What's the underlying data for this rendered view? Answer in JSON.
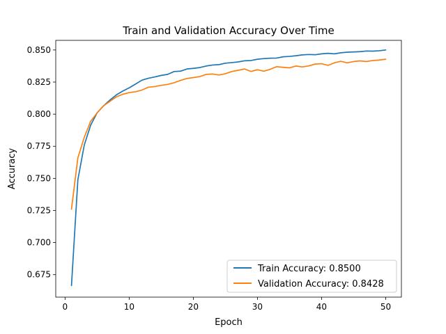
{
  "chart_data": {
    "type": "line",
    "title": "Train and Validation Accuracy Over Time",
    "xlabel": "Epoch",
    "ylabel": "Accuracy",
    "xlim": [
      -1.45,
      52.45
    ],
    "ylim": [
      0.6575,
      0.8575
    ],
    "xticks": [
      0,
      10,
      20,
      30,
      40,
      50
    ],
    "yticks": [
      0.675,
      0.7,
      0.725,
      0.75,
      0.775,
      0.8,
      0.825,
      0.85
    ],
    "ytick_labels": [
      "0.675",
      "0.700",
      "0.725",
      "0.750",
      "0.775",
      "0.800",
      "0.825",
      "0.850"
    ],
    "grid": false,
    "legend_position": "lower-right",
    "x": [
      1,
      2,
      3,
      4,
      5,
      6,
      7,
      8,
      9,
      10,
      11,
      12,
      13,
      14,
      15,
      16,
      17,
      18,
      19,
      20,
      21,
      22,
      23,
      24,
      25,
      26,
      27,
      28,
      29,
      30,
      31,
      32,
      33,
      34,
      35,
      36,
      37,
      38,
      39,
      40,
      41,
      42,
      43,
      44,
      45,
      46,
      47,
      48,
      49,
      50
    ],
    "series": [
      {
        "name": "Train Accuracy: 0.8500",
        "color": "#1f77b4",
        "values": [
          0.6665,
          0.749,
          0.776,
          0.7915,
          0.801,
          0.8065,
          0.811,
          0.815,
          0.818,
          0.8205,
          0.8235,
          0.8265,
          0.828,
          0.829,
          0.8302,
          0.831,
          0.8332,
          0.8335,
          0.8352,
          0.8357,
          0.8363,
          0.8375,
          0.8383,
          0.8386,
          0.8397,
          0.8402,
          0.8407,
          0.8416,
          0.8418,
          0.8428,
          0.8433,
          0.8436,
          0.8437,
          0.8447,
          0.845,
          0.8455,
          0.8462,
          0.8465,
          0.8463,
          0.847,
          0.8474,
          0.847,
          0.8478,
          0.8483,
          0.8485,
          0.8487,
          0.8492,
          0.8491,
          0.8494,
          0.85
        ]
      },
      {
        "name": "Validation Accuracy: 0.8428",
        "color": "#ff7f0e",
        "values": [
          0.726,
          0.766,
          0.782,
          0.7945,
          0.801,
          0.8065,
          0.81,
          0.8135,
          0.8155,
          0.8168,
          0.8175,
          0.8188,
          0.821,
          0.8215,
          0.8225,
          0.8232,
          0.8245,
          0.8263,
          0.8278,
          0.8285,
          0.8293,
          0.831,
          0.8313,
          0.8305,
          0.8315,
          0.8332,
          0.8342,
          0.8352,
          0.8333,
          0.8346,
          0.8335,
          0.835,
          0.837,
          0.8365,
          0.8361,
          0.8375,
          0.8368,
          0.8376,
          0.839,
          0.8393,
          0.838,
          0.84,
          0.8412,
          0.84,
          0.841,
          0.8415,
          0.841,
          0.8418,
          0.8422,
          0.8428
        ]
      }
    ]
  }
}
